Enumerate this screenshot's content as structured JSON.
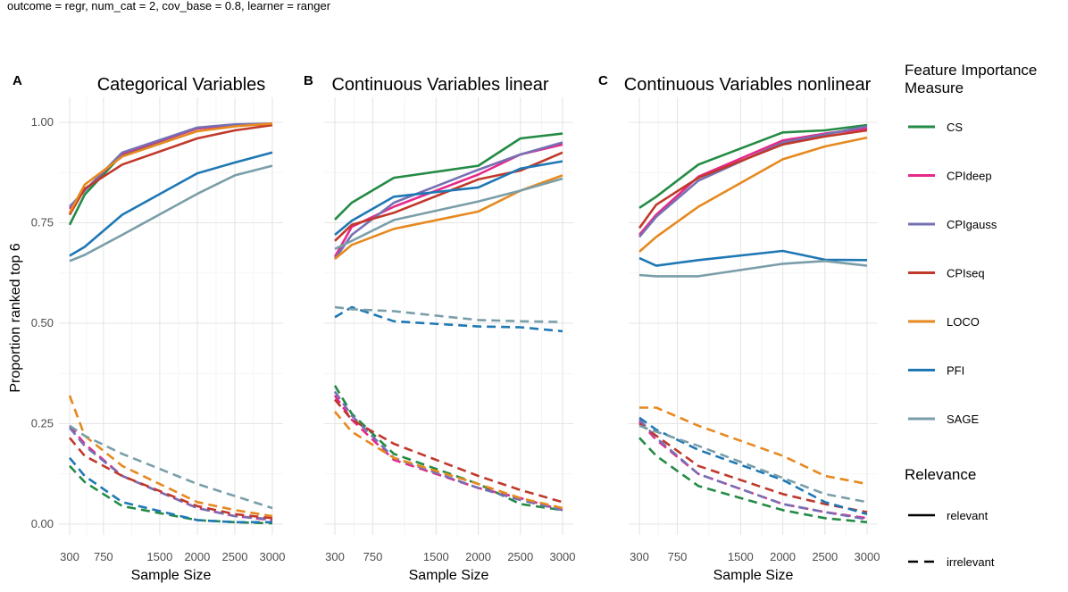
{
  "figure": {
    "subtitle": "outcome = regr, num_cat = 2, cov_base = 0.8, learner = ranger",
    "ylabel": "Proportion ranked top 6",
    "xlabel": "Sample Size"
  },
  "legend": {
    "measure_title": [
      "Feature Importance",
      "Measure"
    ],
    "relevance_title": "Relevance",
    "relevance": [
      {
        "label": "relevant",
        "dash": "solid"
      },
      {
        "label": "irrelevant",
        "dash": "dashed"
      }
    ]
  },
  "chart_data": [
    {
      "tag": "A",
      "type": "line",
      "title": "Categorical Variables",
      "xlabel": "Sample Size",
      "ylabel": "Proportion ranked top 6",
      "x": [
        300,
        500,
        1000,
        2000,
        2500,
        3000
      ],
      "xticks": [
        300,
        750,
        1500,
        2000,
        2500,
        3000
      ],
      "xlim": [
        300,
        3000
      ],
      "ylim": [
        0,
        1
      ],
      "yticks": [
        0,
        0.25,
        0.5,
        0.75,
        1.0
      ],
      "ytick_labels": [
        "0.00",
        "0.25",
        "0.50",
        "0.75",
        "1.00"
      ],
      "series": [
        {
          "name": "CS",
          "color": "#238b45",
          "relevance": "relevant",
          "values": [
            0.745,
            0.82,
            0.92,
            0.985,
            0.993,
            0.995
          ]
        },
        {
          "name": "CPIdeep",
          "color": "#e7298a",
          "relevance": "relevant",
          "values": [
            0.785,
            0.83,
            0.922,
            0.985,
            0.993,
            0.995
          ]
        },
        {
          "name": "CPIgauss",
          "color": "#7570b3",
          "relevance": "relevant",
          "values": [
            0.79,
            0.83,
            0.925,
            0.987,
            0.995,
            0.997
          ]
        },
        {
          "name": "CPIseq",
          "color": "#c0392b",
          "relevance": "relevant",
          "values": [
            0.77,
            0.835,
            0.895,
            0.96,
            0.98,
            0.993
          ]
        },
        {
          "name": "LOCO",
          "color": "#e6891f",
          "relevance": "relevant",
          "values": [
            0.775,
            0.845,
            0.915,
            0.978,
            0.99,
            0.997
          ]
        },
        {
          "name": "PFI",
          "color": "#1f78b4",
          "relevance": "relevant",
          "values": [
            0.668,
            0.69,
            0.77,
            0.873,
            0.9,
            0.925
          ]
        },
        {
          "name": "SAGE",
          "color": "#7a9ea9",
          "relevance": "relevant",
          "values": [
            0.655,
            0.67,
            0.72,
            0.822,
            0.868,
            0.892
          ]
        },
        {
          "name": "CS",
          "color": "#238b45",
          "relevance": "irrelevant",
          "values": [
            0.145,
            0.105,
            0.045,
            0.01,
            0.005,
            0.002
          ]
        },
        {
          "name": "CPIdeep",
          "color": "#e7298a",
          "relevance": "irrelevant",
          "values": [
            0.245,
            0.2,
            0.12,
            0.04,
            0.02,
            0.01
          ]
        },
        {
          "name": "CPIgauss",
          "color": "#7570b3",
          "relevance": "irrelevant",
          "values": [
            0.24,
            0.195,
            0.12,
            0.04,
            0.02,
            0.012
          ]
        },
        {
          "name": "CPIseq",
          "color": "#c0392b",
          "relevance": "irrelevant",
          "values": [
            0.215,
            0.17,
            0.12,
            0.045,
            0.025,
            0.015
          ]
        },
        {
          "name": "LOCO",
          "color": "#e6891f",
          "relevance": "irrelevant",
          "values": [
            0.32,
            0.22,
            0.145,
            0.055,
            0.035,
            0.02
          ]
        },
        {
          "name": "PFI",
          "color": "#1f78b4",
          "relevance": "irrelevant",
          "values": [
            0.165,
            0.12,
            0.055,
            0.01,
            0.005,
            0.005
          ]
        },
        {
          "name": "SAGE",
          "color": "#7a9ea9",
          "relevance": "irrelevant",
          "values": [
            0.245,
            0.22,
            0.175,
            0.1,
            0.07,
            0.04
          ]
        }
      ]
    },
    {
      "tag": "B",
      "type": "line",
      "title": "Continuous Variables linear",
      "xlabel": "Sample Size",
      "ylabel": "Proportion ranked top 6",
      "x": [
        300,
        500,
        1000,
        2000,
        2500,
        3000
      ],
      "xticks": [
        300,
        750,
        1500,
        2000,
        2500,
        3000
      ],
      "xlim": [
        300,
        3000
      ],
      "ylim": [
        0,
        1
      ],
      "yticks": [
        0,
        0.25,
        0.5,
        0.75,
        1.0
      ],
      "ytick_labels": [
        "0.00",
        "0.25",
        "0.50",
        "0.75",
        "1.00"
      ],
      "series": [
        {
          "name": "CS",
          "color": "#238b45",
          "relevance": "relevant",
          "values": [
            0.758,
            0.8,
            0.862,
            0.892,
            0.96,
            0.972
          ]
        },
        {
          "name": "CPIdeep",
          "color": "#e7298a",
          "relevance": "relevant",
          "values": [
            0.665,
            0.74,
            0.79,
            0.87,
            0.92,
            0.945
          ]
        },
        {
          "name": "CPIgauss",
          "color": "#7570b3",
          "relevance": "relevant",
          "values": [
            0.66,
            0.72,
            0.8,
            0.882,
            0.92,
            0.95
          ]
        },
        {
          "name": "CPIseq",
          "color": "#c0392b",
          "relevance": "relevant",
          "values": [
            0.705,
            0.745,
            0.775,
            0.858,
            0.88,
            0.925
          ]
        },
        {
          "name": "LOCO",
          "color": "#e6891f",
          "relevance": "relevant",
          "values": [
            0.66,
            0.695,
            0.735,
            0.778,
            0.83,
            0.868
          ]
        },
        {
          "name": "PFI",
          "color": "#1f78b4",
          "relevance": "relevant",
          "values": [
            0.72,
            0.755,
            0.815,
            0.838,
            0.885,
            0.903
          ]
        },
        {
          "name": "SAGE",
          "color": "#7a9ea9",
          "relevance": "relevant",
          "values": [
            0.685,
            0.705,
            0.757,
            0.803,
            0.83,
            0.86
          ]
        },
        {
          "name": "CS",
          "color": "#238b45",
          "relevance": "irrelevant",
          "values": [
            0.345,
            0.275,
            0.175,
            0.1,
            0.05,
            0.035
          ]
        },
        {
          "name": "CPIdeep",
          "color": "#e7298a",
          "relevance": "irrelevant",
          "values": [
            0.32,
            0.26,
            0.16,
            0.09,
            0.065,
            0.035
          ]
        },
        {
          "name": "CPIgauss",
          "color": "#7570b3",
          "relevance": "irrelevant",
          "values": [
            0.33,
            0.27,
            0.165,
            0.09,
            0.06,
            0.035
          ]
        },
        {
          "name": "CPIseq",
          "color": "#c0392b",
          "relevance": "irrelevant",
          "values": [
            0.31,
            0.26,
            0.2,
            0.12,
            0.085,
            0.055
          ]
        },
        {
          "name": "LOCO",
          "color": "#e6891f",
          "relevance": "irrelevant",
          "values": [
            0.28,
            0.23,
            0.165,
            0.1,
            0.065,
            0.04
          ]
        },
        {
          "name": "PFI",
          "color": "#1f78b4",
          "relevance": "irrelevant",
          "values": [
            0.515,
            0.54,
            0.505,
            0.492,
            0.49,
            0.48
          ]
        },
        {
          "name": "SAGE",
          "color": "#7a9ea9",
          "relevance": "irrelevant",
          "values": [
            0.54,
            0.535,
            0.53,
            0.508,
            0.505,
            0.503
          ]
        }
      ]
    },
    {
      "tag": "C",
      "type": "line",
      "title": "Continuous Variables nonlinear",
      "xlabel": "Sample Size",
      "ylabel": "Proportion ranked top 6",
      "x": [
        300,
        500,
        1000,
        2000,
        2500,
        3000
      ],
      "xticks": [
        300,
        750,
        1500,
        2000,
        2500,
        3000
      ],
      "xlim": [
        300,
        3000
      ],
      "ylim": [
        0,
        1
      ],
      "yticks": [
        0,
        0.25,
        0.5,
        0.75,
        1.0
      ],
      "ytick_labels": [
        "0.00",
        "0.25",
        "0.50",
        "0.75",
        "1.00"
      ],
      "series": [
        {
          "name": "CS",
          "color": "#238b45",
          "relevance": "relevant",
          "values": [
            0.787,
            0.815,
            0.895,
            0.975,
            0.98,
            0.993
          ]
        },
        {
          "name": "CPIdeep",
          "color": "#e7298a",
          "relevance": "relevant",
          "values": [
            0.72,
            0.77,
            0.865,
            0.955,
            0.972,
            0.985
          ]
        },
        {
          "name": "CPIgauss",
          "color": "#7570b3",
          "relevance": "relevant",
          "values": [
            0.715,
            0.765,
            0.855,
            0.95,
            0.97,
            0.99
          ]
        },
        {
          "name": "CPIseq",
          "color": "#c0392b",
          "relevance": "relevant",
          "values": [
            0.737,
            0.795,
            0.862,
            0.945,
            0.965,
            0.98
          ]
        },
        {
          "name": "LOCO",
          "color": "#e6891f",
          "relevance": "relevant",
          "values": [
            0.678,
            0.715,
            0.79,
            0.908,
            0.94,
            0.962
          ]
        },
        {
          "name": "PFI",
          "color": "#1f78b4",
          "relevance": "relevant",
          "values": [
            0.662,
            0.643,
            0.657,
            0.68,
            0.658,
            0.657
          ]
        },
        {
          "name": "SAGE",
          "color": "#7a9ea9",
          "relevance": "relevant",
          "values": [
            0.62,
            0.617,
            0.617,
            0.648,
            0.655,
            0.643
          ]
        },
        {
          "name": "CS",
          "color": "#238b45",
          "relevance": "irrelevant",
          "values": [
            0.215,
            0.17,
            0.095,
            0.035,
            0.015,
            0.005
          ]
        },
        {
          "name": "CPIdeep",
          "color": "#e7298a",
          "relevance": "irrelevant",
          "values": [
            0.255,
            0.21,
            0.125,
            0.05,
            0.03,
            0.015
          ]
        },
        {
          "name": "CPIgauss",
          "color": "#7570b3",
          "relevance": "irrelevant",
          "values": [
            0.26,
            0.215,
            0.125,
            0.05,
            0.03,
            0.012
          ]
        },
        {
          "name": "CPIseq",
          "color": "#c0392b",
          "relevance": "irrelevant",
          "values": [
            0.25,
            0.22,
            0.145,
            0.075,
            0.05,
            0.03
          ]
        },
        {
          "name": "LOCO",
          "color": "#e6891f",
          "relevance": "irrelevant",
          "values": [
            0.29,
            0.29,
            0.245,
            0.17,
            0.12,
            0.1
          ]
        },
        {
          "name": "PFI",
          "color": "#1f78b4",
          "relevance": "irrelevant",
          "values": [
            0.265,
            0.235,
            0.185,
            0.11,
            0.055,
            0.025
          ]
        },
        {
          "name": "SAGE",
          "color": "#7a9ea9",
          "relevance": "irrelevant",
          "values": [
            0.245,
            0.23,
            0.195,
            0.115,
            0.075,
            0.055
          ]
        }
      ]
    }
  ]
}
